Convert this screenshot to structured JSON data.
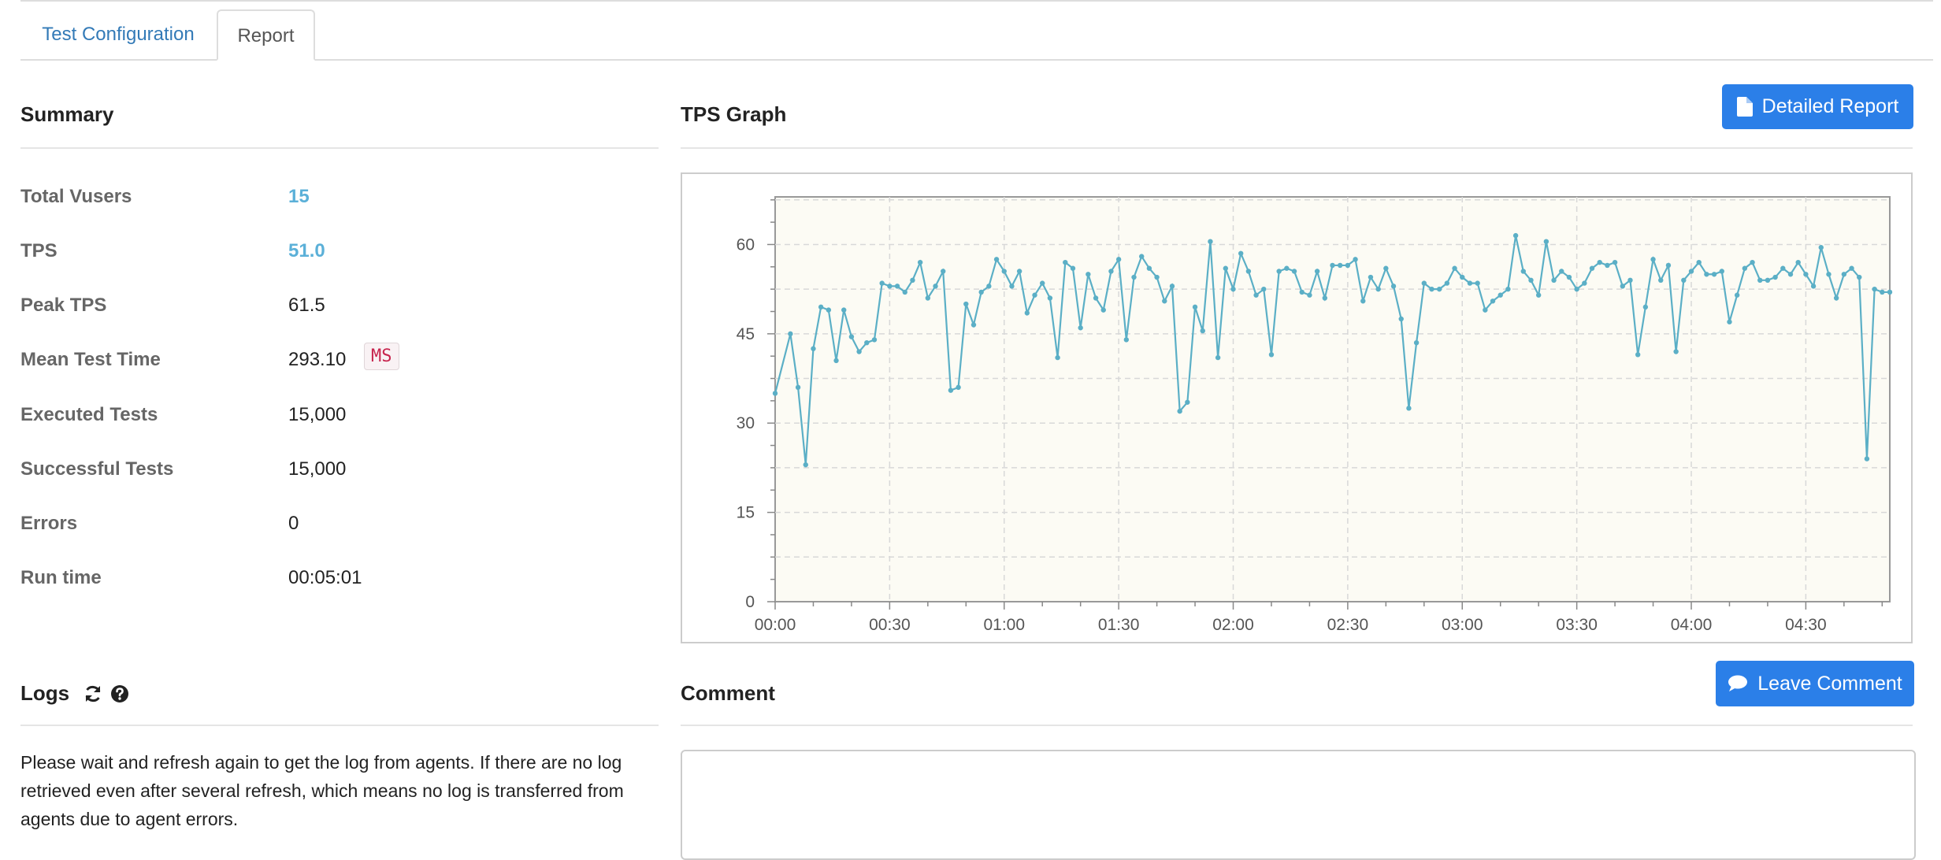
{
  "tabs": [
    {
      "label": "Test Configuration",
      "active": false
    },
    {
      "label": "Report",
      "active": true
    }
  ],
  "summary": {
    "title": "Summary",
    "rows": [
      {
        "label": "Total Vusers",
        "value": "15",
        "highlight": true
      },
      {
        "label": "TPS",
        "value": "51.0",
        "highlight": true
      },
      {
        "label": "Peak TPS",
        "value": "61.5"
      },
      {
        "label": "Mean Test Time",
        "value": "293.10",
        "unit": "MS"
      },
      {
        "label": "Executed Tests",
        "value": "15,000"
      },
      {
        "label": "Successful Tests",
        "value": "15,000"
      },
      {
        "label": "Errors",
        "value": "0"
      },
      {
        "label": "Run time",
        "value": "00:05:01"
      }
    ]
  },
  "tps_graph": {
    "title": "TPS Graph",
    "detailed_report_label": "Detailed Report"
  },
  "logs": {
    "title": "Logs",
    "message": "Please wait and refresh again to get the log from agents. If there are no log retrieved even after several refresh, which means no log is transferred from agents due to agent errors."
  },
  "comment": {
    "title": "Comment",
    "button_label": "Leave Comment"
  },
  "colors": {
    "accent": "#2b7fe8",
    "line": "#5bafc6",
    "plot_bg": "#fcfbf4",
    "highlight_value": "#5bb0d8"
  },
  "icons": [
    "file-icon",
    "refresh-icon",
    "help-icon",
    "comment-icon"
  ],
  "chart_data": {
    "type": "line",
    "title": "",
    "xlabel": "",
    "ylabel": "",
    "x_unit": "seconds",
    "xlim": [
      0,
      292
    ],
    "ylim": [
      0,
      68
    ],
    "x_ticks": [
      0,
      30,
      60,
      90,
      120,
      150,
      180,
      210,
      240,
      270
    ],
    "x_tick_labels": [
      "00:00",
      "00:30",
      "01:00",
      "01:30",
      "02:00",
      "02:30",
      "03:00",
      "03:30",
      "04:00",
      "04:30"
    ],
    "y_ticks": [
      0,
      15,
      30,
      45,
      60
    ],
    "y_tick_labels": [
      "0",
      "15",
      "30",
      "45",
      "60"
    ],
    "grid": true,
    "series": [
      {
        "values": [
          [
            0,
            35
          ],
          [
            4,
            45
          ],
          [
            6,
            36
          ],
          [
            8,
            23
          ],
          [
            10,
            42.5
          ],
          [
            12,
            49.5
          ],
          [
            14,
            49
          ],
          [
            16,
            40.5
          ],
          [
            18,
            49
          ],
          [
            20,
            44.5
          ],
          [
            22,
            42
          ],
          [
            24,
            43.5
          ],
          [
            26,
            44
          ],
          [
            28,
            53.5
          ],
          [
            30,
            53
          ],
          [
            32,
            53
          ],
          [
            34,
            52
          ],
          [
            36,
            54
          ],
          [
            38,
            57
          ],
          [
            40,
            51
          ],
          [
            42,
            53
          ],
          [
            44,
            55.5
          ],
          [
            46,
            35.5
          ],
          [
            48,
            36
          ],
          [
            50,
            50
          ],
          [
            52,
            46.5
          ],
          [
            54,
            52
          ],
          [
            56,
            53
          ],
          [
            58,
            57.5
          ],
          [
            60,
            55.5
          ],
          [
            62,
            53
          ],
          [
            64,
            55.5
          ],
          [
            66,
            48.5
          ],
          [
            68,
            51.5
          ],
          [
            70,
            53.5
          ],
          [
            72,
            51
          ],
          [
            74,
            41
          ],
          [
            76,
            57
          ],
          [
            78,
            56
          ],
          [
            80,
            46
          ],
          [
            82,
            55
          ],
          [
            84,
            51
          ],
          [
            86,
            49
          ],
          [
            88,
            55.5
          ],
          [
            90,
            57.5
          ],
          [
            92,
            44
          ],
          [
            94,
            54.5
          ],
          [
            96,
            58
          ],
          [
            98,
            56
          ],
          [
            100,
            54.5
          ],
          [
            102,
            50.5
          ],
          [
            104,
            53
          ],
          [
            106,
            32
          ],
          [
            108,
            33.5
          ],
          [
            110,
            49.5
          ],
          [
            112,
            45.5
          ],
          [
            114,
            60.5
          ],
          [
            116,
            41
          ],
          [
            118,
            56
          ],
          [
            120,
            52.5
          ],
          [
            122,
            58.5
          ],
          [
            124,
            55.5
          ],
          [
            126,
            51.5
          ],
          [
            128,
            52.5
          ],
          [
            130,
            41.5
          ],
          [
            132,
            55.5
          ],
          [
            134,
            56
          ],
          [
            136,
            55.5
          ],
          [
            138,
            52
          ],
          [
            140,
            51.5
          ],
          [
            142,
            55.5
          ],
          [
            144,
            51
          ],
          [
            146,
            56.5
          ],
          [
            148,
            56.5
          ],
          [
            150,
            56.5
          ],
          [
            152,
            57.5
          ],
          [
            154,
            50.5
          ],
          [
            156,
            54.5
          ],
          [
            158,
            52.5
          ],
          [
            160,
            56
          ],
          [
            162,
            53
          ],
          [
            164,
            47.5
          ],
          [
            166,
            32.5
          ],
          [
            168,
            43.5
          ],
          [
            170,
            53.5
          ],
          [
            172,
            52.5
          ],
          [
            174,
            52.5
          ],
          [
            176,
            53.5
          ],
          [
            178,
            56
          ],
          [
            180,
            54.5
          ],
          [
            182,
            53.5
          ],
          [
            184,
            53.5
          ],
          [
            186,
            49
          ],
          [
            188,
            50.5
          ],
          [
            190,
            51.5
          ],
          [
            192,
            52.5
          ],
          [
            194,
            61.5
          ],
          [
            196,
            55.5
          ],
          [
            198,
            54
          ],
          [
            200,
            51.5
          ],
          [
            202,
            60.5
          ],
          [
            204,
            54
          ],
          [
            206,
            55.5
          ],
          [
            208,
            54.5
          ],
          [
            210,
            52.5
          ],
          [
            212,
            53.5
          ],
          [
            214,
            56
          ],
          [
            216,
            57
          ],
          [
            218,
            56.5
          ],
          [
            220,
            57
          ],
          [
            222,
            53
          ],
          [
            224,
            54
          ],
          [
            226,
            41.5
          ],
          [
            228,
            49.5
          ],
          [
            230,
            57.5
          ],
          [
            232,
            54
          ],
          [
            234,
            56.5
          ],
          [
            236,
            42
          ],
          [
            238,
            54
          ],
          [
            240,
            55.5
          ],
          [
            242,
            57
          ],
          [
            244,
            55
          ],
          [
            246,
            55
          ],
          [
            248,
            55.5
          ],
          [
            250,
            47
          ],
          [
            252,
            51.5
          ],
          [
            254,
            56
          ],
          [
            256,
            57
          ],
          [
            258,
            54
          ],
          [
            260,
            54
          ],
          [
            262,
            54.5
          ],
          [
            264,
            56
          ],
          [
            266,
            55
          ],
          [
            268,
            57
          ],
          [
            270,
            55
          ],
          [
            272,
            53
          ],
          [
            274,
            59.5
          ],
          [
            276,
            55
          ],
          [
            278,
            51
          ],
          [
            280,
            55
          ],
          [
            282,
            56
          ],
          [
            284,
            54.5
          ],
          [
            286,
            24
          ],
          [
            288,
            52.5
          ],
          [
            290,
            52
          ],
          [
            292,
            52
          ]
        ]
      }
    ]
  }
}
